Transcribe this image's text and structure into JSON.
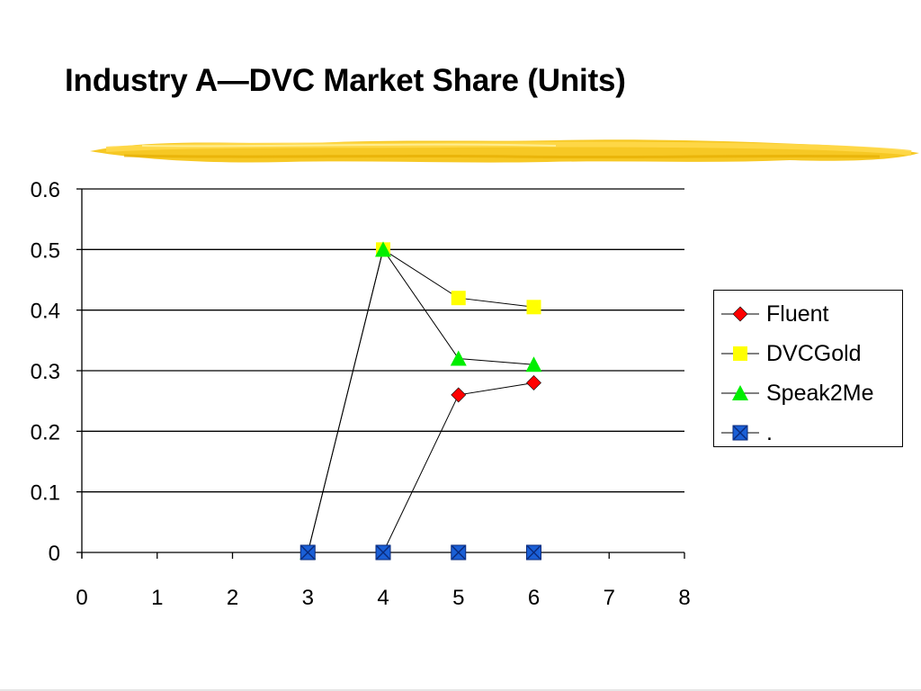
{
  "slide": {
    "title": "Industry A—DVC Market Share (Units)"
  },
  "colors": {
    "brush": "#f4c430",
    "grid": "#000000",
    "line": "#000000"
  },
  "chart_data": {
    "type": "scatter",
    "title": "",
    "xlabel": "",
    "ylabel": "",
    "xlim": [
      0,
      8
    ],
    "ylim": [
      0,
      0.6
    ],
    "x_ticks": [
      "0",
      "1",
      "2",
      "3",
      "4",
      "5",
      "6",
      "7",
      "8"
    ],
    "y_ticks": [
      "0",
      "0.1",
      "0.2",
      "0.3",
      "0.4",
      "0.5",
      "0.6"
    ],
    "grid": "horizontal",
    "legend_position": "right",
    "series": [
      {
        "name": "Fluent",
        "marker": "diamond",
        "color": "#ff0000",
        "points": [
          [
            3,
            0
          ],
          [
            4,
            0
          ],
          [
            5,
            0.26
          ],
          [
            6,
            0.28
          ]
        ]
      },
      {
        "name": "DVCGold",
        "marker": "square",
        "color": "#ffff00",
        "points": [
          [
            3,
            0
          ],
          [
            4,
            0.5
          ],
          [
            5,
            0.42
          ],
          [
            6,
            0.405
          ]
        ]
      },
      {
        "name": "Speak2Me",
        "marker": "triangle",
        "color": "#00ee00",
        "points": [
          [
            3,
            0
          ],
          [
            4,
            0.5
          ],
          [
            5,
            0.32
          ],
          [
            6,
            0.31
          ]
        ]
      },
      {
        "name": ".",
        "marker": "x-square",
        "color": "#1a5fd6",
        "points": [
          [
            3,
            0
          ],
          [
            4,
            0
          ],
          [
            5,
            0
          ],
          [
            6,
            0
          ]
        ]
      }
    ]
  }
}
